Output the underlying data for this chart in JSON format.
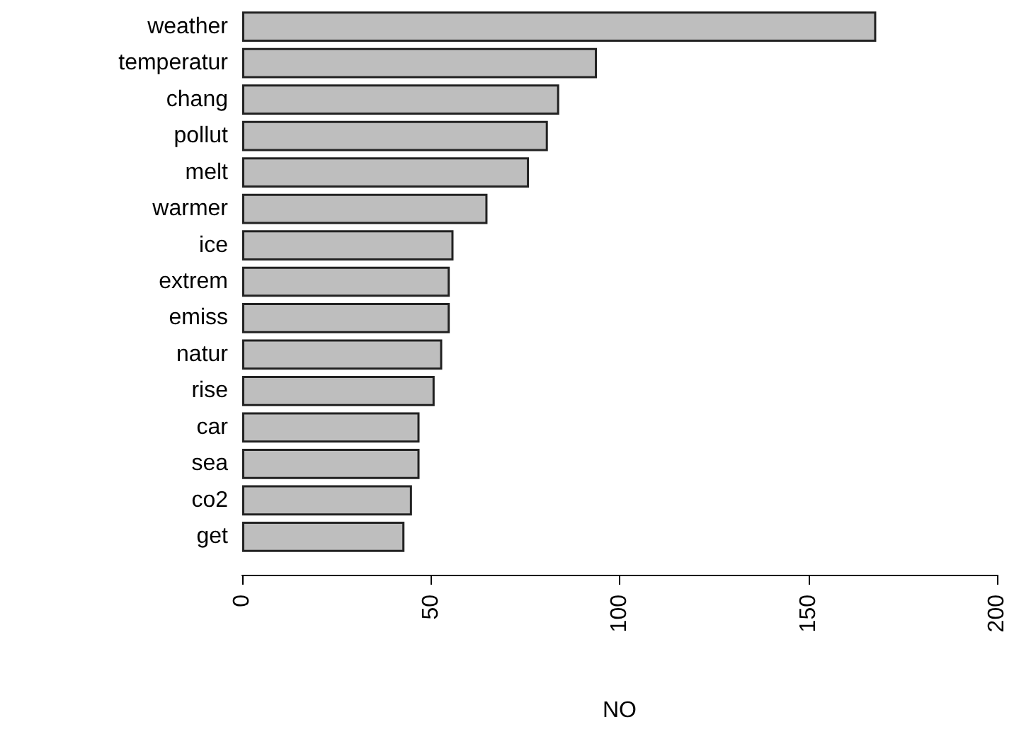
{
  "chart_data": {
    "type": "bar",
    "orientation": "horizontal",
    "xlabel": "NO",
    "categories": [
      "weather",
      "temperatur",
      "chang",
      "pollut",
      "melt",
      "warmer",
      "ice",
      "extrem",
      "emiss",
      "natur",
      "rise",
      "car",
      "sea",
      "co2",
      "get"
    ],
    "values": [
      168,
      94,
      84,
      81,
      76,
      65,
      56,
      55,
      55,
      53,
      51,
      47,
      47,
      45,
      43
    ],
    "color": "#bebebe",
    "xlim": [
      0,
      200
    ],
    "xticks": [
      0,
      50,
      100,
      150,
      200
    ],
    "grid": false
  }
}
